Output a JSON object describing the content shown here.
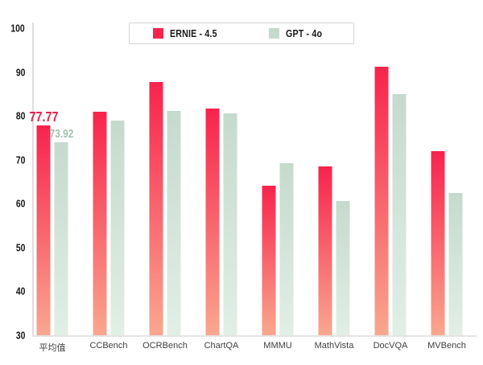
{
  "chart_data": {
    "type": "bar",
    "title": "",
    "categories": [
      "平均值",
      "CCBench",
      "OCRBench",
      "ChartQA",
      "MMMU",
      "MathVista",
      "DocVQA",
      "MVBench"
    ],
    "series": [
      {
        "name": "ERNIE - 4.5",
        "values": [
          77.77,
          80.9,
          87.7,
          81.7,
          64.1,
          68.4,
          91.2,
          71.9
        ],
        "color_top": "#f8234c",
        "color_bottom": "#f9a78e",
        "label_color": "#e8224b"
      },
      {
        "name": "GPT - 4o",
        "values": [
          73.92,
          78.9,
          81.2,
          80.5,
          69.3,
          60.6,
          85.0,
          62.4
        ],
        "color_top": "#c5dacd",
        "color_bottom": "#e1efe6",
        "label_color": "#a6c2b3"
      }
    ],
    "value_labels": [
      {
        "series": 0,
        "category": 0,
        "text": "77.77"
      },
      {
        "series": 1,
        "category": 0,
        "text": "73.92"
      }
    ],
    "ylim": [
      30,
      100
    ],
    "yticks": [
      100,
      90,
      80,
      70,
      60,
      50,
      40,
      30
    ],
    "grid": false,
    "legend_position": "top-center",
    "colors": {
      "axis_line": "#dedede",
      "tick_text": "#161616",
      "category_text": "#3f3f3f"
    }
  }
}
